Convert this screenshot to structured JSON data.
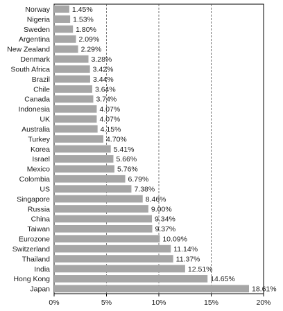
{
  "chart_data": {
    "type": "bar",
    "orientation": "horizontal",
    "categories": [
      "Norway",
      "Nigeria",
      "Sweden",
      "Argentina",
      "New Zealand",
      "Denmark",
      "South Africa",
      "Brazil",
      "Chile",
      "Canada",
      "Indonesia",
      "UK",
      "Australia",
      "Turkey",
      "Korea",
      "Israel",
      "Mexico",
      "Colombia",
      "US",
      "Singapore",
      "Russia",
      "China",
      "Taiwan",
      "Eurozone",
      "Switzerland",
      "Thailand",
      "India",
      "Hong Kong",
      "Japan"
    ],
    "values": [
      1.45,
      1.53,
      1.8,
      2.09,
      2.29,
      3.28,
      3.42,
      3.44,
      3.64,
      3.74,
      4.07,
      4.07,
      4.15,
      4.7,
      5.41,
      5.66,
      5.76,
      6.79,
      7.38,
      8.46,
      9.0,
      9.34,
      9.37,
      10.09,
      11.14,
      11.37,
      12.51,
      14.65,
      18.61
    ],
    "data_labels": [
      "1.45%",
      "1.53%",
      "1.80%",
      "2.09%",
      "2.29%",
      "3.28%",
      "3.42%",
      "3.44%",
      "3.64%",
      "3.74%",
      "4.07%",
      "4.07%",
      "4.15%",
      "4.70%",
      "5.41%",
      "5.66%",
      "5.76%",
      "6.79%",
      "7.38%",
      "8.46%",
      "9.00%",
      "9.34%",
      "9.37%",
      "10.09%",
      "11.14%",
      "11.37%",
      "12.51%",
      "14.65%",
      "18.61%"
    ],
    "x_ticks": [
      0,
      5,
      10,
      15,
      20
    ],
    "x_tick_labels": [
      "0%",
      "5%",
      "10%",
      "15%",
      "20%"
    ],
    "xlim": [
      0,
      20
    ],
    "grid": "vertical dashed",
    "bar_color": "#a6a6a6",
    "title": "",
    "xlabel": "",
    "ylabel": ""
  }
}
